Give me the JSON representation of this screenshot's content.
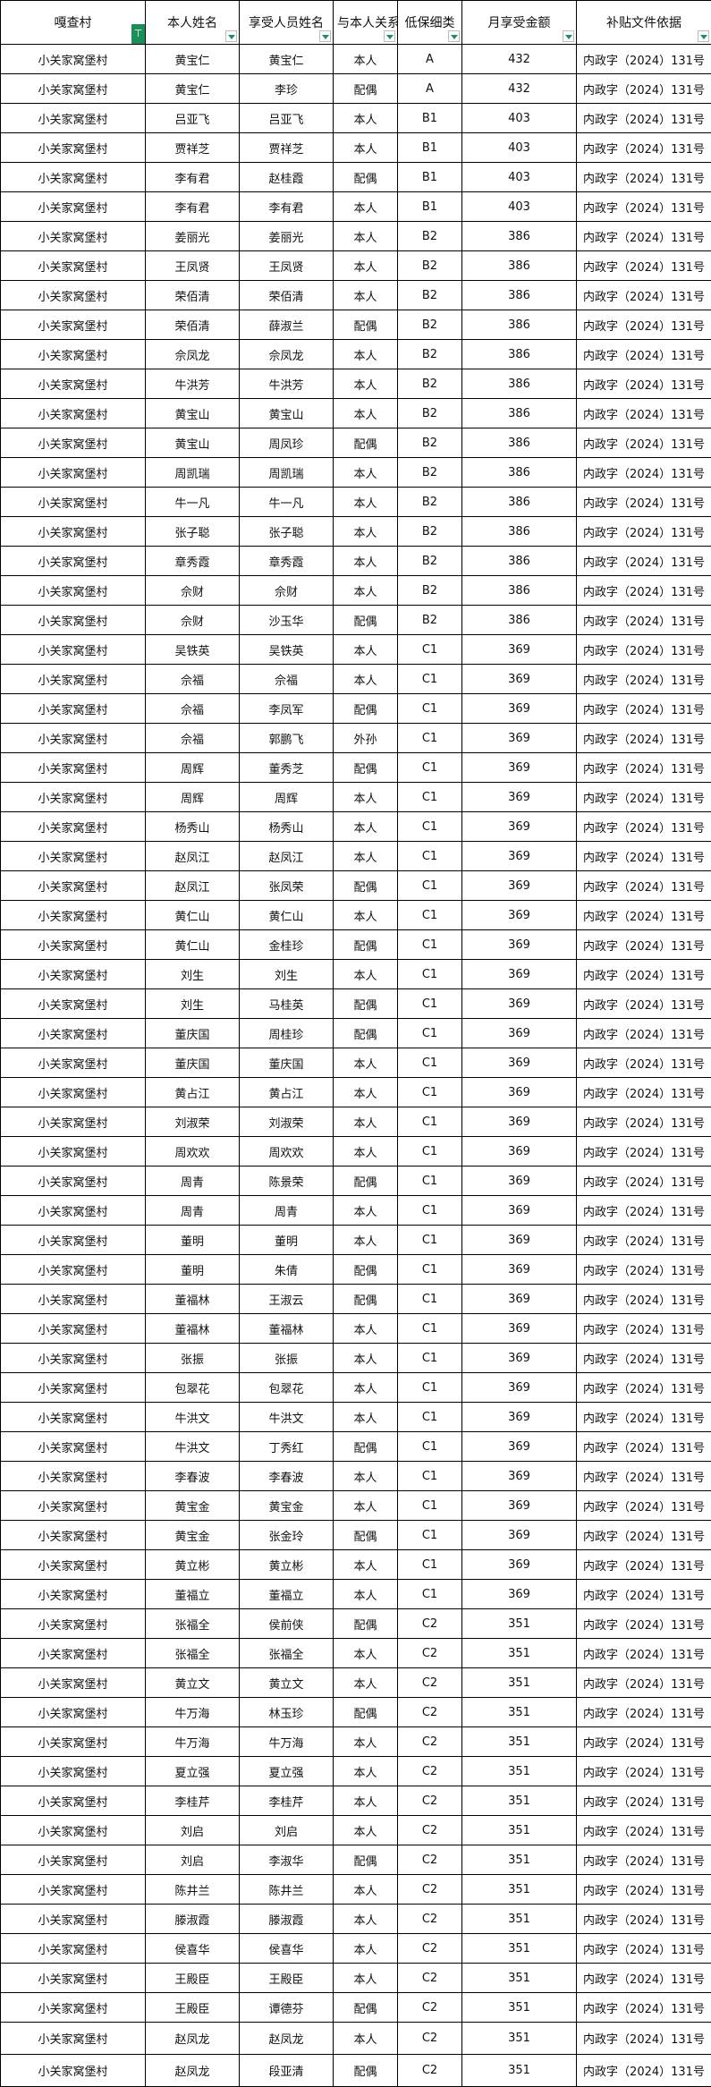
{
  "sheet": {
    "accent_color": "#1a8f5a",
    "headers": [
      {
        "label": "嘎查村",
        "control": "filter-active-icon"
      },
      {
        "label": "本人姓名",
        "control": "dropdown-icon"
      },
      {
        "label": "享受人员姓名",
        "control": "dropdown-icon"
      },
      {
        "label": "与本人关系",
        "control": "dropdown-icon"
      },
      {
        "label": "低保细类",
        "control": "dropdown-icon"
      },
      {
        "label": "月享受金额",
        "control": "dropdown-icon"
      },
      {
        "label": "补贴文件依据",
        "control": "dropdown-icon"
      }
    ],
    "rows": [
      [
        "小关家窝堡村",
        "黄宝仁",
        "黄宝仁",
        "本人",
        "A",
        "432",
        "内政字（2024）131号"
      ],
      [
        "小关家窝堡村",
        "黄宝仁",
        "李珍",
        "配偶",
        "A",
        "432",
        "内政字（2024）131号"
      ],
      [
        "小关家窝堡村",
        "吕亚飞",
        "吕亚飞",
        "本人",
        "B1",
        "403",
        "内政字（2024）131号"
      ],
      [
        "小关家窝堡村",
        "贾祥芝",
        "贾祥芝",
        "本人",
        "B1",
        "403",
        "内政字（2024）131号"
      ],
      [
        "小关家窝堡村",
        "李有君",
        "赵桂霞",
        "配偶",
        "B1",
        "403",
        "内政字（2024）131号"
      ],
      [
        "小关家窝堡村",
        "李有君",
        "李有君",
        "本人",
        "B1",
        "403",
        "内政字（2024）131号"
      ],
      [
        "小关家窝堡村",
        "姜丽光",
        "姜丽光",
        "本人",
        "B2",
        "386",
        "内政字（2024）131号"
      ],
      [
        "小关家窝堡村",
        "王凤贤",
        "王凤贤",
        "本人",
        "B2",
        "386",
        "内政字（2024）131号"
      ],
      [
        "小关家窝堡村",
        "荣佰清",
        "荣佰清",
        "本人",
        "B2",
        "386",
        "内政字（2024）131号"
      ],
      [
        "小关家窝堡村",
        "荣佰清",
        "薛淑兰",
        "配偶",
        "B2",
        "386",
        "内政字（2024）131号"
      ],
      [
        "小关家窝堡村",
        "佘凤龙",
        "佘凤龙",
        "本人",
        "B2",
        "386",
        "内政字（2024）131号"
      ],
      [
        "小关家窝堡村",
        "牛洪芳",
        "牛洪芳",
        "本人",
        "B2",
        "386",
        "内政字（2024）131号"
      ],
      [
        "小关家窝堡村",
        "黄宝山",
        "黄宝山",
        "本人",
        "B2",
        "386",
        "内政字（2024）131号"
      ],
      [
        "小关家窝堡村",
        "黄宝山",
        "周凤珍",
        "配偶",
        "B2",
        "386",
        "内政字（2024）131号"
      ],
      [
        "小关家窝堡村",
        "周凯瑞",
        "周凯瑞",
        "本人",
        "B2",
        "386",
        "内政字（2024）131号"
      ],
      [
        "小关家窝堡村",
        "牛一凡",
        "牛一凡",
        "本人",
        "B2",
        "386",
        "内政字（2024）131号"
      ],
      [
        "小关家窝堡村",
        "张子聪",
        "张子聪",
        "本人",
        "B2",
        "386",
        "内政字（2024）131号"
      ],
      [
        "小关家窝堡村",
        "章秀霞",
        "章秀霞",
        "本人",
        "B2",
        "386",
        "内政字（2024）131号"
      ],
      [
        "小关家窝堡村",
        "佘财",
        "佘财",
        "本人",
        "B2",
        "386",
        "内政字（2024）131号"
      ],
      [
        "小关家窝堡村",
        "佘财",
        "沙玉华",
        "配偶",
        "B2",
        "386",
        "内政字（2024）131号"
      ],
      [
        "小关家窝堡村",
        "吴铁英",
        "吴铁英",
        "本人",
        "C1",
        "369",
        "内政字（2024）131号"
      ],
      [
        "小关家窝堡村",
        "佘福",
        "佘福",
        "本人",
        "C1",
        "369",
        "内政字（2024）131号"
      ],
      [
        "小关家窝堡村",
        "佘福",
        "李凤军",
        "配偶",
        "C1",
        "369",
        "内政字（2024）131号"
      ],
      [
        "小关家窝堡村",
        "佘福",
        "郭鹏飞",
        "外孙",
        "C1",
        "369",
        "内政字（2024）131号"
      ],
      [
        "小关家窝堡村",
        "周辉",
        "董秀芝",
        "配偶",
        "C1",
        "369",
        "内政字（2024）131号"
      ],
      [
        "小关家窝堡村",
        "周辉",
        "周辉",
        "本人",
        "C1",
        "369",
        "内政字（2024）131号"
      ],
      [
        "小关家窝堡村",
        "杨秀山",
        "杨秀山",
        "本人",
        "C1",
        "369",
        "内政字（2024）131号"
      ],
      [
        "小关家窝堡村",
        "赵凤江",
        "赵凤江",
        "本人",
        "C1",
        "369",
        "内政字（2024）131号"
      ],
      [
        "小关家窝堡村",
        "赵凤江",
        "张凤荣",
        "配偶",
        "C1",
        "369",
        "内政字（2024）131号"
      ],
      [
        "小关家窝堡村",
        "黄仁山",
        "黄仁山",
        "本人",
        "C1",
        "369",
        "内政字（2024）131号"
      ],
      [
        "小关家窝堡村",
        "黄仁山",
        "金桂珍",
        "配偶",
        "C1",
        "369",
        "内政字（2024）131号"
      ],
      [
        "小关家窝堡村",
        "刘生",
        "刘生",
        "本人",
        "C1",
        "369",
        "内政字（2024）131号"
      ],
      [
        "小关家窝堡村",
        "刘生",
        "马桂英",
        "配偶",
        "C1",
        "369",
        "内政字（2024）131号"
      ],
      [
        "小关家窝堡村",
        "董庆国",
        "周桂珍",
        "配偶",
        "C1",
        "369",
        "内政字（2024）131号"
      ],
      [
        "小关家窝堡村",
        "董庆国",
        "董庆国",
        "本人",
        "C1",
        "369",
        "内政字（2024）131号"
      ],
      [
        "小关家窝堡村",
        "黄占江",
        "黄占江",
        "本人",
        "C1",
        "369",
        "内政字（2024）131号"
      ],
      [
        "小关家窝堡村",
        "刘淑荣",
        "刘淑荣",
        "本人",
        "C1",
        "369",
        "内政字（2024）131号"
      ],
      [
        "小关家窝堡村",
        "周欢欢",
        "周欢欢",
        "本人",
        "C1",
        "369",
        "内政字（2024）131号"
      ],
      [
        "小关家窝堡村",
        "周青",
        "陈景荣",
        "配偶",
        "C1",
        "369",
        "内政字（2024）131号"
      ],
      [
        "小关家窝堡村",
        "周青",
        "周青",
        "本人",
        "C1",
        "369",
        "内政字（2024）131号"
      ],
      [
        "小关家窝堡村",
        "董明",
        "董明",
        "本人",
        "C1",
        "369",
        "内政字（2024）131号"
      ],
      [
        "小关家窝堡村",
        "董明",
        "朱倩",
        "配偶",
        "C1",
        "369",
        "内政字（2024）131号"
      ],
      [
        "小关家窝堡村",
        "董福林",
        "王淑云",
        "配偶",
        "C1",
        "369",
        "内政字（2024）131号"
      ],
      [
        "小关家窝堡村",
        "董福林",
        "董福林",
        "本人",
        "C1",
        "369",
        "内政字（2024）131号"
      ],
      [
        "小关家窝堡村",
        "张振",
        "张振",
        "本人",
        "C1",
        "369",
        "内政字（2024）131号"
      ],
      [
        "小关家窝堡村",
        "包翠花",
        "包翠花",
        "本人",
        "C1",
        "369",
        "内政字（2024）131号"
      ],
      [
        "小关家窝堡村",
        "牛洪文",
        "牛洪文",
        "本人",
        "C1",
        "369",
        "内政字（2024）131号"
      ],
      [
        "小关家窝堡村",
        "牛洪文",
        "丁秀红",
        "配偶",
        "C1",
        "369",
        "内政字（2024）131号"
      ],
      [
        "小关家窝堡村",
        "李春波",
        "李春波",
        "本人",
        "C1",
        "369",
        "内政字（2024）131号"
      ],
      [
        "小关家窝堡村",
        "黄宝金",
        "黄宝金",
        "本人",
        "C1",
        "369",
        "内政字（2024）131号"
      ],
      [
        "小关家窝堡村",
        "黄宝金",
        "张金玲",
        "配偶",
        "C1",
        "369",
        "内政字（2024）131号"
      ],
      [
        "小关家窝堡村",
        "黄立彬",
        "黄立彬",
        "本人",
        "C1",
        "369",
        "内政字（2024）131号"
      ],
      [
        "小关家窝堡村",
        "董福立",
        "董福立",
        "本人",
        "C1",
        "369",
        "内政字（2024）131号"
      ],
      [
        "小关家窝堡村",
        "张福全",
        "侯前侠",
        "配偶",
        "C2",
        "351",
        "内政字（2024）131号"
      ],
      [
        "小关家窝堡村",
        "张福全",
        "张福全",
        "本人",
        "C2",
        "351",
        "内政字（2024）131号"
      ],
      [
        "小关家窝堡村",
        "黄立文",
        "黄立文",
        "本人",
        "C2",
        "351",
        "内政字（2024）131号"
      ],
      [
        "小关家窝堡村",
        "牛万海",
        "林玉珍",
        "配偶",
        "C2",
        "351",
        "内政字（2024）131号"
      ],
      [
        "小关家窝堡村",
        "牛万海",
        "牛万海",
        "本人",
        "C2",
        "351",
        "内政字（2024）131号"
      ],
      [
        "小关家窝堡村",
        "夏立强",
        "夏立强",
        "本人",
        "C2",
        "351",
        "内政字（2024）131号"
      ],
      [
        "小关家窝堡村",
        "李桂芹",
        "李桂芹",
        "本人",
        "C2",
        "351",
        "内政字（2024）131号"
      ],
      [
        "小关家窝堡村",
        "刘启",
        "刘启",
        "本人",
        "C2",
        "351",
        "内政字（2024）131号"
      ],
      [
        "小关家窝堡村",
        "刘启",
        "李淑华",
        "配偶",
        "C2",
        "351",
        "内政字（2024）131号"
      ],
      [
        "小关家窝堡村",
        "陈井兰",
        "陈井兰",
        "本人",
        "C2",
        "351",
        "内政字（2024）131号"
      ],
      [
        "小关家窝堡村",
        "滕淑霞",
        "滕淑霞",
        "本人",
        "C2",
        "351",
        "内政字（2024）131号"
      ],
      [
        "小关家窝堡村",
        "侯喜华",
        "侯喜华",
        "本人",
        "C2",
        "351",
        "内政字（2024）131号"
      ],
      [
        "小关家窝堡村",
        "王殿臣",
        "王殿臣",
        "本人",
        "C2",
        "351",
        "内政字（2024）131号"
      ],
      [
        "小关家窝堡村",
        "王殿臣",
        "谭德芬",
        "配偶",
        "C2",
        "351",
        "内政字（2024）131号"
      ],
      [
        "小关家窝堡村",
        "赵凤龙",
        "赵凤龙",
        "本人",
        "C2",
        "351",
        "内政字（2024）131号"
      ],
      [
        "小关家窝堡村",
        "赵凤龙",
        "段亚清",
        "配偶",
        "C2",
        "351",
        "内政字（2024）131号"
      ]
    ]
  }
}
